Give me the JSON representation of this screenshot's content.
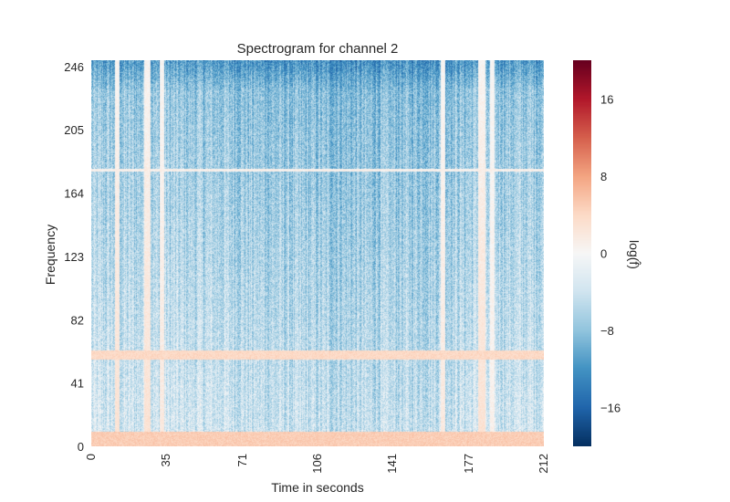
{
  "chart_data": {
    "type": "heatmap",
    "title": "Spectrogram for channel 2",
    "xlabel": "Time in seconds",
    "ylabel": "Frequency",
    "colorbar_label": "log(f̂)",
    "xlim": [
      0,
      212
    ],
    "ylim": [
      0,
      250
    ],
    "x_ticks": [
      0,
      35,
      71,
      106,
      141,
      177,
      212
    ],
    "x_tick_labels": [
      "0",
      "35",
      "71",
      "106",
      "141",
      "177",
      "212"
    ],
    "y_ticks": [
      0,
      41,
      82,
      123,
      164,
      205,
      246
    ],
    "y_tick_labels": [
      "0",
      "41",
      "82",
      "123",
      "164",
      "205",
      "246"
    ],
    "color_range": [
      -20,
      20
    ],
    "colorbar_ticks": [
      -16,
      -8,
      0,
      8,
      16
    ],
    "colorbar_tick_labels": [
      "−16",
      "−8",
      "0",
      "8",
      "16"
    ],
    "colormap": "RdBu_r",
    "colormap_stops": [
      "#053061",
      "#2166ac",
      "#4393c3",
      "#92c5de",
      "#d1e5f0",
      "#f7f7f7",
      "#fddbc7",
      "#f4a582",
      "#d6604d",
      "#b2182b",
      "#67001f"
    ],
    "horizontal_bands": [
      {
        "y_center": 4,
        "y_half_width": 5,
        "level": 5
      },
      {
        "y_center": 59,
        "y_half_width": 3,
        "level": 4
      },
      {
        "y_center": 179,
        "y_half_width": 1,
        "level": 1
      }
    ],
    "vertical_bands": [
      {
        "x": 12,
        "half_width": 1.2,
        "level": 3
      },
      {
        "x": 26,
        "half_width": 1.5,
        "level": 3
      },
      {
        "x": 33,
        "half_width": 1.0,
        "level": 2
      },
      {
        "x": 183,
        "half_width": 1.8,
        "level": 3
      },
      {
        "x": 165,
        "half_width": 1.0,
        "level": 2
      },
      {
        "x": 188,
        "half_width": 1.0,
        "level": 1
      }
    ]
  }
}
